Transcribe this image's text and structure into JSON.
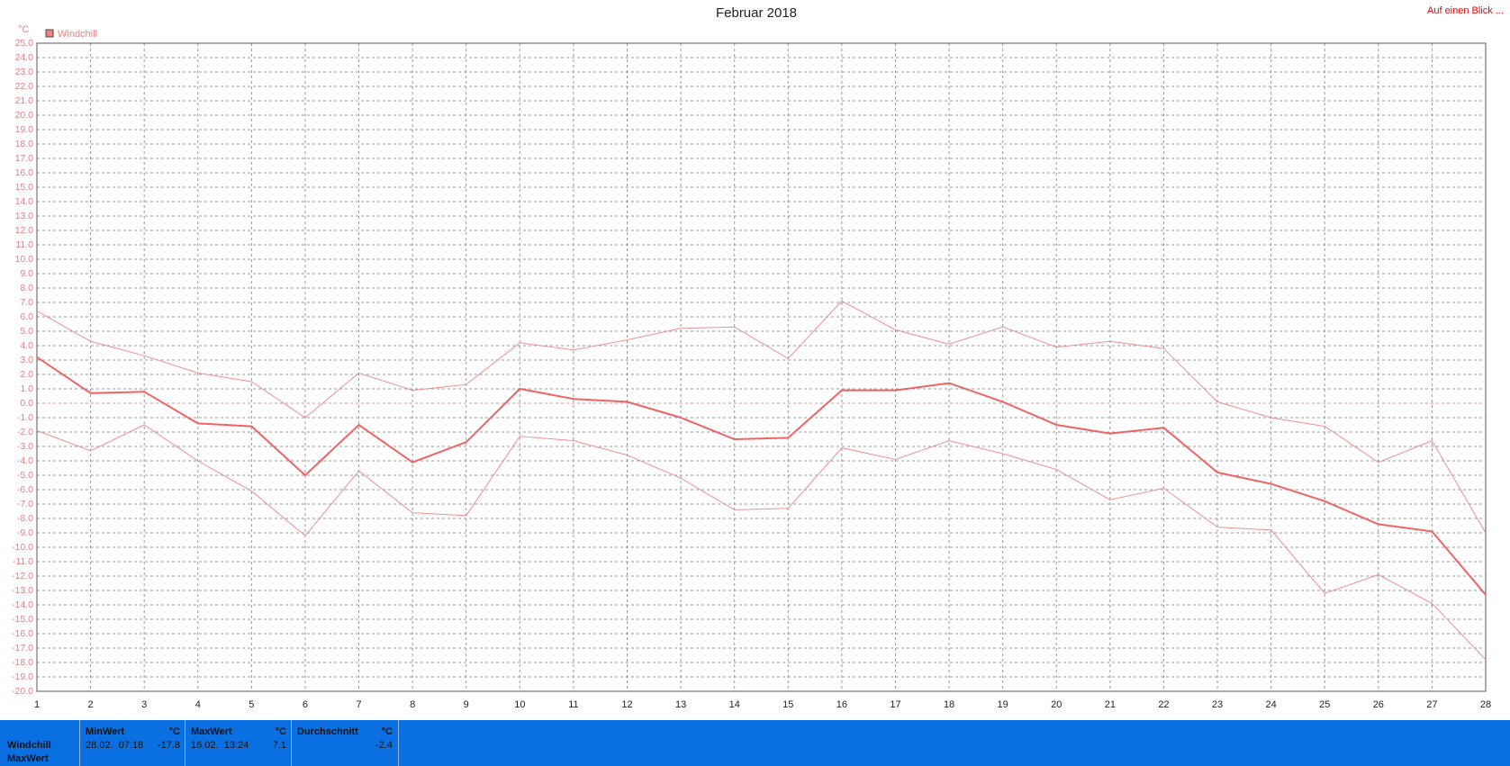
{
  "chart_data": {
    "type": "line",
    "title": "Februar 2018",
    "y_unit": "°C",
    "legend": "Windchill",
    "legend_color": "#f08080",
    "x": [
      1,
      2,
      3,
      4,
      5,
      6,
      7,
      8,
      9,
      10,
      11,
      12,
      13,
      14,
      15,
      16,
      17,
      18,
      19,
      20,
      21,
      22,
      23,
      24,
      25,
      26,
      27,
      28
    ],
    "xlim": [
      1,
      28
    ],
    "xticks": [
      1,
      2,
      3,
      4,
      5,
      6,
      7,
      8,
      9,
      10,
      11,
      12,
      13,
      14,
      15,
      16,
      17,
      18,
      19,
      20,
      21,
      22,
      23,
      24,
      25,
      26,
      27,
      28
    ],
    "ylim": [
      -20,
      25
    ],
    "yticks": [
      {
        "value": 25,
        "label": "25.0"
      },
      {
        "value": 24,
        "label": "24.0"
      },
      {
        "value": 23,
        "label": "23.0"
      },
      {
        "value": 22,
        "label": "22.0"
      },
      {
        "value": 21,
        "label": "21.0"
      },
      {
        "value": 20,
        "label": "20.0"
      },
      {
        "value": 19,
        "label": "19.0"
      },
      {
        "value": 18,
        "label": "18.0"
      },
      {
        "value": 17,
        "label": "17.0"
      },
      {
        "value": 16,
        "label": "16.0"
      },
      {
        "value": 15,
        "label": "15.0"
      },
      {
        "value": 14,
        "label": "14.0"
      },
      {
        "value": 13,
        "label": "13.0"
      },
      {
        "value": 12,
        "label": "12.0"
      },
      {
        "value": 11,
        "label": "11.0"
      },
      {
        "value": 10,
        "label": "10.0"
      },
      {
        "value": 9,
        "label": "9.0"
      },
      {
        "value": 8,
        "label": "8.0"
      },
      {
        "value": 7,
        "label": "7.0"
      },
      {
        "value": 6,
        "label": "6.0"
      },
      {
        "value": 5,
        "label": "5.0"
      },
      {
        "value": 4,
        "label": "4.0"
      },
      {
        "value": 3,
        "label": "3.0"
      },
      {
        "value": 2,
        "label": "2.0"
      },
      {
        "value": 1,
        "label": "1.0"
      },
      {
        "value": 0,
        "label": "0.0"
      },
      {
        "value": -1,
        "label": "-1.0"
      },
      {
        "value": -2,
        "label": "-2.0"
      },
      {
        "value": -3,
        "label": "-3.0"
      },
      {
        "value": -4,
        "label": "-4.0"
      },
      {
        "value": -5,
        "label": "-5.0"
      },
      {
        "value": -6,
        "label": "-6.0"
      },
      {
        "value": -7,
        "label": "-7.0"
      },
      {
        "value": -8,
        "label": "-8.0"
      },
      {
        "value": -9,
        "label": "-9.0"
      },
      {
        "value": -10,
        "label": "-10.0"
      },
      {
        "value": -11,
        "label": "-11.0"
      },
      {
        "value": -12,
        "label": "-12.0"
      },
      {
        "value": -13,
        "label": "-13.0"
      },
      {
        "value": -14,
        "label": "-14.0"
      },
      {
        "value": -15,
        "label": "-15.0"
      },
      {
        "value": -16,
        "label": "-16.0"
      },
      {
        "value": -17,
        "label": "-17.0"
      },
      {
        "value": -18,
        "label": "-18.0"
      },
      {
        "value": -19,
        "label": "-19.0"
      },
      {
        "value": -20,
        "label": "-20.0"
      }
    ],
    "grid": true,
    "series": [
      {
        "color": "#f08f8f",
        "width": 1,
        "values": [
          6.4,
          4.3,
          3.3,
          2.1,
          1.5,
          -1.0,
          2.1,
          0.9,
          1.3,
          4.2,
          3.7,
          4.4,
          5.2,
          5.3,
          3.1,
          7.1,
          5.1,
          4.1,
          5.3,
          3.9,
          4.3,
          3.8,
          0.1,
          -1.0,
          -1.6,
          -4.1,
          -2.6,
          -9.0
        ]
      },
      {
        "color": "#ee6464",
        "width": 2,
        "values": [
          3.2,
          0.7,
          0.8,
          -1.4,
          -1.6,
          -5.0,
          -1.5,
          -4.1,
          -2.7,
          1.0,
          0.3,
          0.1,
          -1.0,
          -2.5,
          -2.4,
          0.9,
          0.9,
          1.4,
          0.1,
          -1.5,
          -2.1,
          -1.7,
          -4.8,
          -5.6,
          -6.8,
          -8.4,
          -8.9,
          -13.3
        ]
      },
      {
        "color": "#f08f8f",
        "width": 1,
        "values": [
          -1.9,
          -3.3,
          -1.5,
          -4.0,
          -6.1,
          -9.2,
          -4.7,
          -7.6,
          -7.8,
          -2.3,
          -2.6,
          -3.6,
          -5.2,
          -7.4,
          -7.3,
          -3.1,
          -3.9,
          -2.6,
          -3.5,
          -4.6,
          -6.7,
          -5.9,
          -8.6,
          -8.8,
          -13.2,
          -11.9,
          -13.9,
          -17.8
        ]
      }
    ]
  },
  "header_link": "Auf einen Blick ...",
  "stats": {
    "row_labels": [
      "Windchill",
      "MaxWert"
    ],
    "columns": [
      {
        "title": "MinWert",
        "unit": "°C",
        "time": "28.02.  07:18",
        "value": -17.8
      },
      {
        "title": "MaxWert",
        "unit": "°C",
        "time": "16.02.  13:24",
        "value": 7.1
      },
      {
        "title": "Durchschnitt",
        "unit": "°C",
        "value": -2.4
      }
    ]
  }
}
